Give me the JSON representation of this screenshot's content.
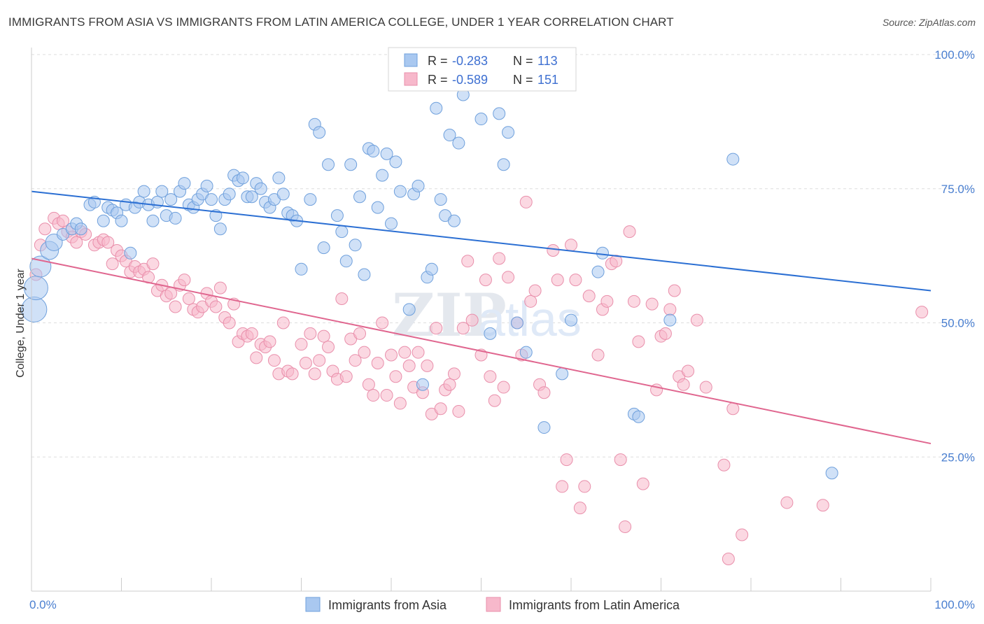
{
  "title": "IMMIGRANTS FROM ASIA VS IMMIGRANTS FROM LATIN AMERICA COLLEGE, UNDER 1 YEAR CORRELATION CHART",
  "source": "Source: ZipAtlas.com",
  "watermark": "ZIPatlas",
  "colors": {
    "asia_fill": "#a9c8f0",
    "asia_stroke": "#6fa0dc",
    "asia_line": "#2b6fd3",
    "latam_fill": "#f7b8cb",
    "latam_stroke": "#e98fab",
    "latam_line": "#e0668f",
    "grid": "#dddddd",
    "axis_text": "#4a7fd0"
  },
  "legend": {
    "r_label": "R =",
    "n_label": "N =",
    "rows": [
      {
        "r": "-0.283",
        "n": "113"
      },
      {
        "r": "-0.589",
        "n": "151"
      }
    ]
  },
  "bottom_legend": [
    "Immigrants from Asia",
    "Immigrants from Latin America"
  ],
  "chart_data": {
    "type": "scatter",
    "title": "IMMIGRANTS FROM ASIA VS IMMIGRANTS FROM LATIN AMERICA COLLEGE, UNDER 1 YEAR CORRELATION CHART",
    "xlabel": "",
    "ylabel": "College, Under 1 year",
    "xlim": [
      0,
      100
    ],
    "ylim": [
      0,
      100
    ],
    "x_tick_labels": [
      "0.0%",
      "100.0%"
    ],
    "y_tick_labels": [
      "100.0%",
      "75.0%",
      "50.0%",
      "25.0%"
    ],
    "y_ticks": [
      100,
      75,
      50,
      25
    ],
    "grid": true,
    "legend_position": "top-center",
    "series": [
      {
        "name": "Immigrants from Asia",
        "r": -0.283,
        "n": 113,
        "trend": {
          "x": [
            0,
            100
          ],
          "y": [
            74.5,
            56.0
          ]
        },
        "points": [
          [
            0.3,
            52.5
          ],
          [
            0.5,
            56.5
          ],
          [
            1.0,
            60.5
          ],
          [
            2.0,
            63.5
          ],
          [
            2.5,
            65
          ],
          [
            3.5,
            66.5
          ],
          [
            4.5,
            67.5
          ],
          [
            5.0,
            68.5
          ],
          [
            5.5,
            67.5
          ],
          [
            6.5,
            72
          ],
          [
            7.0,
            72.5
          ],
          [
            8.0,
            69
          ],
          [
            8.5,
            71.5
          ],
          [
            9.0,
            71
          ],
          [
            9.5,
            70.5
          ],
          [
            10,
            69
          ],
          [
            10.5,
            72
          ],
          [
            11,
            63
          ],
          [
            11.5,
            71.5
          ],
          [
            12,
            72.5
          ],
          [
            12.5,
            74.5
          ],
          [
            13,
            72
          ],
          [
            13.5,
            69
          ],
          [
            14,
            72.5
          ],
          [
            14.5,
            74.5
          ],
          [
            15,
            70
          ],
          [
            15.5,
            73
          ],
          [
            16,
            69.5
          ],
          [
            16.5,
            74.5
          ],
          [
            17,
            76
          ],
          [
            17.5,
            72
          ],
          [
            18,
            71.5
          ],
          [
            18.5,
            73
          ],
          [
            19,
            74
          ],
          [
            19.5,
            75.5
          ],
          [
            20,
            73
          ],
          [
            20.5,
            70
          ],
          [
            21,
            67.5
          ],
          [
            21.5,
            73
          ],
          [
            22,
            74
          ],
          [
            22.5,
            77.5
          ],
          [
            23,
            76.5
          ],
          [
            23.5,
            77
          ],
          [
            24,
            73.5
          ],
          [
            24.5,
            73.5
          ],
          [
            25,
            76
          ],
          [
            25.5,
            75
          ],
          [
            26,
            72.5
          ],
          [
            26.5,
            71.5
          ],
          [
            27,
            73
          ],
          [
            27.5,
            77
          ],
          [
            28,
            74
          ],
          [
            28.5,
            70.5
          ],
          [
            29,
            70
          ],
          [
            29.5,
            69
          ],
          [
            30,
            60
          ],
          [
            31,
            73
          ],
          [
            31.5,
            87
          ],
          [
            32,
            85.5
          ],
          [
            32.5,
            64
          ],
          [
            33,
            79.5
          ],
          [
            34,
            70
          ],
          [
            34.5,
            67
          ],
          [
            35,
            61.5
          ],
          [
            35.5,
            79.5
          ],
          [
            36,
            64.5
          ],
          [
            36.5,
            73.5
          ],
          [
            37,
            59
          ],
          [
            37.5,
            82.5
          ],
          [
            38,
            82
          ],
          [
            38.5,
            71.5
          ],
          [
            39,
            77.5
          ],
          [
            39.5,
            81.5
          ],
          [
            40,
            68.5
          ],
          [
            40.5,
            80
          ],
          [
            41,
            74.5
          ],
          [
            42,
            52.5
          ],
          [
            42.5,
            74
          ],
          [
            43,
            75.5
          ],
          [
            43.5,
            38.5
          ],
          [
            44,
            58.5
          ],
          [
            44.5,
            60
          ],
          [
            45,
            90
          ],
          [
            45.5,
            73
          ],
          [
            46,
            70
          ],
          [
            46.5,
            85
          ],
          [
            47,
            69
          ],
          [
            47.5,
            83.5
          ],
          [
            48,
            92.5
          ],
          [
            50,
            88
          ],
          [
            51,
            48
          ],
          [
            52,
            89
          ],
          [
            52.5,
            79.5
          ],
          [
            53,
            85.5
          ],
          [
            54,
            50
          ],
          [
            55,
            44.5
          ],
          [
            57,
            30.5
          ],
          [
            59,
            40.5
          ],
          [
            60,
            50.5
          ],
          [
            63,
            59.5
          ],
          [
            63.5,
            63
          ],
          [
            67,
            33
          ],
          [
            67.5,
            32.5
          ],
          [
            71,
            50.5
          ],
          [
            78,
            80.5
          ],
          [
            89,
            22
          ]
        ],
        "point_sizes": {
          "0.3,52.5": 18,
          "0.5,56.5": 17,
          "1.0,60.5": 15,
          "2.0,63.5": 13,
          "2.5,65": 12
        }
      },
      {
        "name": "Immigrants from Latin America",
        "r": -0.589,
        "n": 151,
        "trend": {
          "x": [
            0,
            100
          ],
          "y": [
            62.0,
            27.5
          ]
        },
        "points": [
          [
            0.5,
            59
          ],
          [
            1.0,
            64.5
          ],
          [
            1.5,
            67.5
          ],
          [
            2.5,
            69.5
          ],
          [
            3,
            68.5
          ],
          [
            3.5,
            69
          ],
          [
            4,
            67
          ],
          [
            4.5,
            66
          ],
          [
            5,
            65
          ],
          [
            5.5,
            67
          ],
          [
            6,
            66.5
          ],
          [
            7,
            64.5
          ],
          [
            7.5,
            65
          ],
          [
            8,
            65.5
          ],
          [
            8.5,
            65
          ],
          [
            9,
            61
          ],
          [
            9.5,
            63.5
          ],
          [
            10,
            62.5
          ],
          [
            10.5,
            61.5
          ],
          [
            11,
            59.5
          ],
          [
            11.5,
            60.5
          ],
          [
            12,
            59.5
          ],
          [
            12.5,
            60
          ],
          [
            13,
            58.5
          ],
          [
            13.5,
            61
          ],
          [
            14,
            56
          ],
          [
            14.5,
            57
          ],
          [
            15,
            55
          ],
          [
            15.5,
            55.5
          ],
          [
            16,
            53
          ],
          [
            16.5,
            57
          ],
          [
            17,
            58
          ],
          [
            17.5,
            54.5
          ],
          [
            18,
            52.5
          ],
          [
            18.5,
            52
          ],
          [
            19,
            53
          ],
          [
            19.5,
            55.5
          ],
          [
            20,
            54
          ],
          [
            20.5,
            53
          ],
          [
            21,
            56.5
          ],
          [
            21.5,
            51
          ],
          [
            22,
            50
          ],
          [
            22.5,
            53.5
          ],
          [
            23,
            46.5
          ],
          [
            23.5,
            48
          ],
          [
            24,
            47.5
          ],
          [
            24.5,
            48
          ],
          [
            25,
            43.5
          ],
          [
            25.5,
            46
          ],
          [
            26,
            45.5
          ],
          [
            26.5,
            46.5
          ],
          [
            27,
            43
          ],
          [
            27.5,
            40.5
          ],
          [
            28,
            50
          ],
          [
            28.5,
            41
          ],
          [
            29,
            40.5
          ],
          [
            30,
            46
          ],
          [
            30.5,
            42.5
          ],
          [
            31,
            48
          ],
          [
            31.5,
            40.5
          ],
          [
            32,
            43
          ],
          [
            32.5,
            47.5
          ],
          [
            33,
            45.5
          ],
          [
            33.5,
            41
          ],
          [
            34,
            39.5
          ],
          [
            34.5,
            54.5
          ],
          [
            35,
            40
          ],
          [
            35.5,
            47
          ],
          [
            36,
            43
          ],
          [
            36.5,
            48
          ],
          [
            37,
            44.5
          ],
          [
            37.5,
            38.5
          ],
          [
            38,
            36.5
          ],
          [
            38.5,
            42.5
          ],
          [
            39,
            50
          ],
          [
            39.5,
            36.5
          ],
          [
            40,
            44
          ],
          [
            40.5,
            40
          ],
          [
            41,
            35
          ],
          [
            41.5,
            44.5
          ],
          [
            42,
            42
          ],
          [
            42.5,
            38
          ],
          [
            43,
            44.5
          ],
          [
            43.5,
            37
          ],
          [
            44,
            42
          ],
          [
            44.5,
            33
          ],
          [
            45,
            49
          ],
          [
            45.5,
            34
          ],
          [
            46,
            37.5
          ],
          [
            46.5,
            38.5
          ],
          [
            47,
            40.5
          ],
          [
            47.5,
            33.5
          ],
          [
            48,
            49
          ],
          [
            48.5,
            61.5
          ],
          [
            49,
            50.5
          ],
          [
            50,
            44
          ],
          [
            50.5,
            58
          ],
          [
            51,
            40
          ],
          [
            51.5,
            35.5
          ],
          [
            52,
            62
          ],
          [
            52.5,
            38
          ],
          [
            53,
            58.5
          ],
          [
            54,
            50
          ],
          [
            54.5,
            44
          ],
          [
            55,
            72.5
          ],
          [
            55.5,
            54
          ],
          [
            56,
            56
          ],
          [
            56.5,
            38.5
          ],
          [
            57,
            37
          ],
          [
            58,
            63.5
          ],
          [
            58.5,
            58
          ],
          [
            59,
            19.5
          ],
          [
            59.5,
            24.5
          ],
          [
            60,
            64.5
          ],
          [
            60.5,
            58
          ],
          [
            61,
            15.5
          ],
          [
            61.5,
            19.5
          ],
          [
            62,
            55
          ],
          [
            63,
            44
          ],
          [
            63.5,
            52.5
          ],
          [
            64,
            54
          ],
          [
            64.5,
            61
          ],
          [
            65,
            61.5
          ],
          [
            65.5,
            24.5
          ],
          [
            66,
            12
          ],
          [
            66.5,
            67
          ],
          [
            67,
            54
          ],
          [
            67.5,
            46.5
          ],
          [
            68,
            20
          ],
          [
            69,
            53.5
          ],
          [
            69.5,
            37.5
          ],
          [
            70,
            47.5
          ],
          [
            70.5,
            48
          ],
          [
            71,
            52.5
          ],
          [
            71.5,
            56
          ],
          [
            72,
            40
          ],
          [
            72.5,
            38.5
          ],
          [
            73,
            41
          ],
          [
            74,
            50.5
          ],
          [
            75,
            38
          ],
          [
            77,
            23.5
          ],
          [
            77.5,
            6
          ],
          [
            78,
            34
          ],
          [
            79,
            10.5
          ],
          [
            84,
            16.5
          ],
          [
            88,
            16
          ],
          [
            99,
            52
          ]
        ]
      }
    ]
  }
}
